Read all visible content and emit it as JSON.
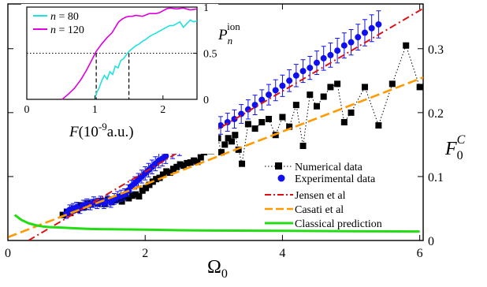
{
  "chart_data": [
    {
      "type": "scatter",
      "xlabel_base": "Ω",
      "xlabel_sub": "0",
      "ylabel_base": "F",
      "ylabel_sub": "0",
      "ylabel_sup": "C",
      "xlim": [
        0,
        6.05
      ],
      "ylim": [
        0,
        0.37
      ],
      "xticks": [
        0,
        2,
        4,
        6
      ],
      "xtick_labels": [
        "0",
        "2",
        "4",
        "6"
      ],
      "yticks": [
        0,
        0.1,
        0.2,
        0.3
      ],
      "ytick_labels": [
        "0",
        "0.1",
        "0.2",
        "0.3"
      ],
      "legend_position": "bottom-right",
      "series": [
        {
          "name": "Numerical data",
          "style": "square-dotted",
          "color": "#000000",
          "x": [
            0.8,
            0.86,
            0.91,
            0.96,
            1.01,
            1.06,
            1.11,
            1.16,
            1.21,
            1.26,
            1.31,
            1.36,
            1.41,
            1.46,
            1.51,
            1.56,
            1.61,
            1.66,
            1.71,
            1.76,
            1.81,
            1.86,
            1.91,
            1.96,
            2.01,
            2.06,
            2.11,
            2.16,
            2.21,
            2.26,
            2.31,
            2.36,
            2.41,
            2.46,
            2.51,
            2.56,
            2.61,
            2.66,
            2.71,
            2.76,
            2.81,
            2.86,
            2.91,
            2.96,
            3.01,
            3.06,
            3.11,
            3.16,
            3.21,
            3.26,
            3.31,
            3.36,
            3.41,
            3.5,
            3.6,
            3.7,
            3.8,
            3.9,
            4.0,
            4.1,
            4.2,
            4.3,
            4.4,
            4.5,
            4.6,
            4.7,
            4.8,
            4.9,
            5.0,
            5.2,
            5.4,
            5.6,
            5.8,
            6.0
          ],
          "y": [
            0.04,
            0.045,
            0.043,
            0.05,
            0.048,
            0.055,
            0.052,
            0.058,
            0.056,
            0.06,
            0.058,
            0.062,
            0.057,
            0.064,
            0.06,
            0.063,
            0.065,
            0.061,
            0.068,
            0.066,
            0.07,
            0.072,
            0.069,
            0.078,
            0.082,
            0.087,
            0.092,
            0.096,
            0.098,
            0.103,
            0.108,
            0.106,
            0.112,
            0.115,
            0.119,
            0.117,
            0.121,
            0.122,
            0.125,
            0.123,
            0.13,
            0.138,
            0.145,
            0.14,
            0.152,
            0.16,
            0.138,
            0.15,
            0.16,
            0.155,
            0.165,
            0.142,
            0.12,
            0.182,
            0.175,
            0.185,
            0.19,
            0.165,
            0.193,
            0.178,
            0.212,
            0.148,
            0.228,
            0.21,
            0.225,
            0.24,
            0.245,
            0.185,
            0.2,
            0.24,
            0.18,
            0.245,
            0.305,
            0.24
          ]
        },
        {
          "name": "Experimental data",
          "style": "circle-errorbar",
          "color": "#1010ee",
          "x": [
            0.85,
            0.9,
            0.95,
            1.0,
            1.05,
            1.1,
            1.15,
            1.2,
            1.25,
            1.3,
            1.35,
            1.4,
            1.45,
            1.5,
            1.55,
            1.6,
            1.65,
            1.7,
            1.75,
            1.8,
            1.85,
            1.9,
            1.95,
            2.0,
            2.05,
            2.1,
            2.15,
            2.2,
            2.25,
            2.3,
            2.4,
            2.5,
            2.6,
            2.7,
            2.8,
            2.9,
            3.0,
            3.1,
            3.2,
            3.3,
            3.4,
            3.5,
            3.6,
            3.7,
            3.8,
            3.9,
            4.0,
            4.1,
            4.2,
            4.3,
            4.4,
            4.5,
            4.6,
            4.7,
            4.8,
            4.9,
            5.0,
            5.1,
            5.2,
            5.3,
            5.4
          ],
          "y": [
            0.042,
            0.048,
            0.05,
            0.052,
            0.05,
            0.055,
            0.057,
            0.056,
            0.06,
            0.058,
            0.061,
            0.058,
            0.062,
            0.06,
            0.065,
            0.068,
            0.07,
            0.072,
            0.078,
            0.085,
            0.09,
            0.095,
            0.1,
            0.105,
            0.11,
            0.115,
            0.12,
            0.125,
            0.128,
            0.132,
            0.14,
            0.145,
            0.15,
            0.155,
            0.16,
            0.168,
            0.175,
            0.18,
            0.185,
            0.19,
            0.198,
            0.205,
            0.212,
            0.22,
            0.228,
            0.235,
            0.242,
            0.25,
            0.258,
            0.265,
            0.27,
            0.278,
            0.285,
            0.29,
            0.297,
            0.305,
            0.31,
            0.318,
            0.325,
            0.332,
            0.338
          ],
          "error": 0.018
        },
        {
          "name": "Jensen et al",
          "style": "dash-dot",
          "color": "#dd1111",
          "x": [
            0.3,
            6.05
          ],
          "y": [
            0.0,
            0.363
          ]
        },
        {
          "name": "Casati et al",
          "style": "dashed",
          "color": "#ff9900",
          "x": [
            0.0,
            6.05
          ],
          "y": [
            0.005,
            0.255
          ]
        },
        {
          "name": "Classical prediction",
          "style": "solid",
          "color": "#22dd11",
          "x": [
            0.1,
            0.2,
            0.3,
            0.4,
            0.5,
            0.6,
            0.7,
            0.8,
            1.0,
            1.2,
            1.5,
            2.0,
            2.5,
            3.0,
            4.0,
            5.0,
            6.0
          ],
          "y": [
            0.04,
            0.032,
            0.027,
            0.024,
            0.022,
            0.021,
            0.0205,
            0.02,
            0.019,
            0.018,
            0.0175,
            0.017,
            0.016,
            0.0155,
            0.015,
            0.0145,
            0.014
          ]
        }
      ]
    },
    {
      "type": "line",
      "xlabel_base": "F",
      "xlabel_unit": "(10",
      "xlabel_exp": "-9",
      "xlabel_unit2": "a.u.)",
      "ylabel_base": "P",
      "ylabel_sub": "n",
      "ylabel_sup": "ion",
      "xlim": [
        0,
        2.5
      ],
      "ylim": [
        0,
        1
      ],
      "xticks": [
        0,
        1,
        2
      ],
      "xtick_labels": [
        "0",
        "1",
        "2"
      ],
      "yticks": [
        0,
        0.5,
        1
      ],
      "ytick_labels": [
        "0",
        "0.5",
        "1"
      ],
      "reference_line_y": 0.5,
      "marker_x": [
        1.02,
        1.5
      ],
      "legend_position": "top-left",
      "series": [
        {
          "name_var": "n",
          "name_value": " = 80",
          "color": "#22e0e0",
          "x": [
            1.0,
            1.03,
            1.06,
            1.1,
            1.14,
            1.18,
            1.22,
            1.26,
            1.3,
            1.34,
            1.38,
            1.42,
            1.46,
            1.5,
            1.55,
            1.6,
            1.65,
            1.7,
            1.75,
            1.8,
            1.85,
            1.9,
            1.95,
            2.0,
            2.05,
            2.1,
            2.15,
            2.2,
            2.25,
            2.3,
            2.35,
            2.4,
            2.45,
            2.5
          ],
          "y": [
            0.0,
            0.08,
            0.12,
            0.2,
            0.26,
            0.22,
            0.3,
            0.27,
            0.36,
            0.34,
            0.42,
            0.44,
            0.48,
            0.52,
            0.55,
            0.58,
            0.6,
            0.63,
            0.65,
            0.68,
            0.7,
            0.72,
            0.74,
            0.76,
            0.78,
            0.8,
            0.8,
            0.82,
            0.84,
            0.78,
            0.82,
            0.86,
            0.84,
            0.85
          ]
        },
        {
          "name_var": "n",
          "name_value": " = 120",
          "color": "#dd00dd",
          "x": [
            0.52,
            0.6,
            0.7,
            0.8,
            0.88,
            0.95,
            1.02,
            1.1,
            1.18,
            1.25,
            1.3,
            1.35,
            1.4,
            1.45,
            1.5,
            1.55,
            1.6,
            1.7,
            1.8,
            1.9,
            1.95,
            2.0,
            2.05,
            2.1,
            2.2,
            2.3,
            2.4,
            2.5
          ],
          "y": [
            0.0,
            0.05,
            0.12,
            0.22,
            0.32,
            0.42,
            0.52,
            0.6,
            0.67,
            0.72,
            0.78,
            0.84,
            0.87,
            0.89,
            0.9,
            0.9,
            0.91,
            0.9,
            0.93,
            0.93,
            0.94,
            0.96,
            0.98,
            0.99,
            0.98,
            0.99,
            0.97,
            0.98
          ]
        }
      ]
    }
  ]
}
